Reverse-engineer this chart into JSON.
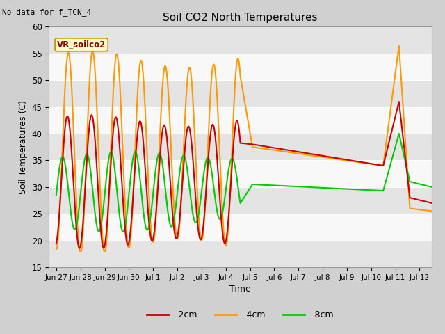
{
  "title": "Soil CO2 North Temperatures",
  "ylabel": "Soil Temperatures (C)",
  "xlabel": "Time",
  "no_data_text": "No data for f_TCN_4",
  "sensor_label": "VR_soilco2",
  "ylim": [
    15,
    60
  ],
  "yticks": [
    15,
    20,
    25,
    30,
    35,
    40,
    45,
    50,
    55,
    60
  ],
  "line_colors": {
    "m2cm": "#cc0000",
    "m4cm": "#ff9900",
    "m8cm": "#00cc00"
  },
  "tick_labels": [
    "Jun 27",
    "Jun 28",
    "Jun 29",
    "Jun 30",
    "Jul 1",
    "Jul 2",
    "Jul 3",
    "Jul 4",
    "Jul 5",
    "Jul 6",
    "Jul 7",
    "Jul 8",
    "Jul 9",
    "Jul 10",
    "Jul 11",
    "Jul 12"
  ],
  "fig_bg": "#d0d0d0",
  "plot_bg": "#f2f2f2",
  "band_light": "#f8f8f8",
  "band_dark": "#e4e4e4"
}
